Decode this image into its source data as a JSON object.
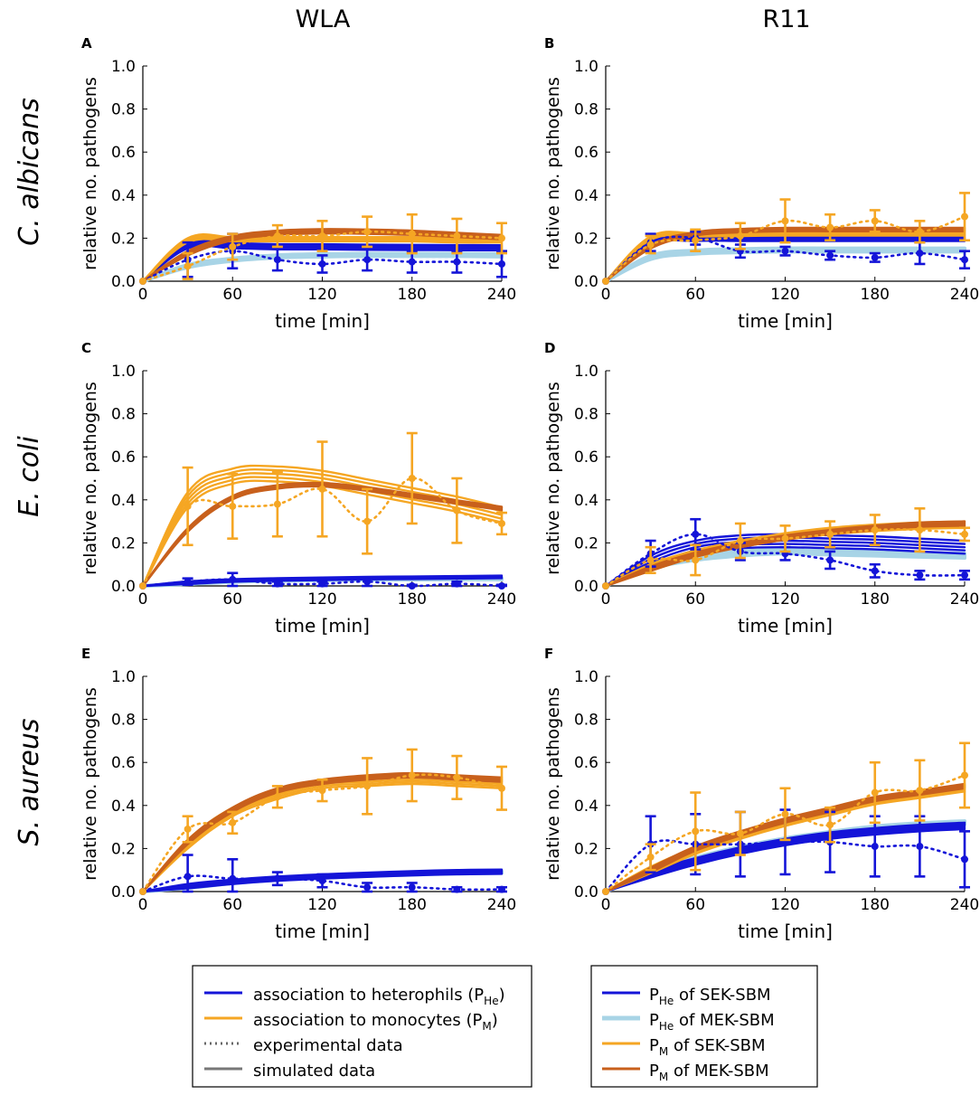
{
  "columns": [
    {
      "title": "WLA"
    },
    {
      "title": "R11"
    }
  ],
  "rows": [
    {
      "label": "C. albicans"
    },
    {
      "label": "E. coli"
    },
    {
      "label": "S. aureus"
    }
  ],
  "axis_text": {
    "xlabel": "time [min]",
    "ylabel": "relative no. pathogens",
    "xticks": [
      "0",
      "60",
      "120",
      "180",
      "240"
    ],
    "yticks": [
      "0.0",
      "0.2",
      "0.4",
      "0.6",
      "0.8",
      "1.0"
    ]
  },
  "colors": {
    "heterophils_sek": "#1414d8",
    "heterophils_mek": "#a8d4e6",
    "monocytes_sek": "#f5a623",
    "monocytes_mek": "#c8601c",
    "axis": "#000000"
  },
  "legend_left": {
    "items": [
      {
        "label": "association to heterophils (P",
        "sub": "He",
        "tail": ")",
        "style": "solid",
        "color": "#1414d8"
      },
      {
        "label": "association to monocytes (P",
        "sub": "M",
        "tail": ")",
        "style": "solid",
        "color": "#f5a623"
      },
      {
        "label": "experimental data",
        "sub": "",
        "tail": "",
        "style": "dotted",
        "color": "#666666"
      },
      {
        "label": "simulated data",
        "sub": "",
        "tail": "",
        "style": "solid",
        "color": "#777777"
      }
    ]
  },
  "legend_right": {
    "items": [
      {
        "label": "P",
        "sub": "He",
        "tail": " of SEK-SBM",
        "style": "solid",
        "color": "#1414d8"
      },
      {
        "label": "P",
        "sub": "He",
        "tail": " of MEK-SBM",
        "style": "solid",
        "color": "#a8d4e6"
      },
      {
        "label": "P",
        "sub": "M",
        "tail": " of SEK-SBM",
        "style": "solid",
        "color": "#f5a623"
      },
      {
        "label": "P",
        "sub": "M",
        "tail": " of MEK-SBM",
        "style": "solid",
        "color": "#c8601c"
      }
    ]
  },
  "chart_data": [
    {
      "panel": "A",
      "type": "line",
      "column": "WLA",
      "row": "C. albicans",
      "xlabel": "time [min]",
      "ylabel": "relative no. pathogens",
      "xlim": [
        0,
        240
      ],
      "ylim": [
        0,
        1
      ],
      "x": [
        0,
        30,
        60,
        90,
        120,
        150,
        180,
        210,
        240
      ],
      "experimental": [
        {
          "name": "heterophils",
          "values": [
            0,
            0.1,
            0.14,
            0.1,
            0.08,
            0.1,
            0.09,
            0.09,
            0.08
          ],
          "err": [
            0,
            0.08,
            0.08,
            0.05,
            0.04,
            0.05,
            0.05,
            0.05,
            0.06
          ]
        },
        {
          "name": "monocytes",
          "values": [
            0,
            0.07,
            0.16,
            0.21,
            0.21,
            0.23,
            0.22,
            0.21,
            0.2
          ],
          "err": [
            0,
            0.06,
            0.06,
            0.05,
            0.07,
            0.07,
            0.09,
            0.08,
            0.07
          ]
        }
      ],
      "simulated": [
        {
          "name": "PHe of SEK-SBM",
          "values": [
            0,
            0.165,
            0.165,
            0.16,
            0.16,
            0.158,
            0.157,
            0.156,
            0.155
          ],
          "band": 0.012
        },
        {
          "name": "PHe of MEK-SBM",
          "values": [
            0,
            0.07,
            0.1,
            0.115,
            0.12,
            0.122,
            0.122,
            0.122,
            0.12
          ],
          "band": 0.006
        },
        {
          "name": "PM of SEK-SBM",
          "values": [
            0,
            0.19,
            0.195,
            0.195,
            0.195,
            0.195,
            0.195,
            0.19,
            0.19
          ],
          "band": 0.01
        },
        {
          "name": "PM of MEK-SBM",
          "values": [
            0,
            0.13,
            0.2,
            0.225,
            0.232,
            0.23,
            0.225,
            0.215,
            0.205
          ],
          "band": 0.01
        }
      ]
    },
    {
      "panel": "B",
      "type": "line",
      "column": "R11",
      "row": "C. albicans",
      "xlabel": "time [min]",
      "ylabel": "relative no. pathogens",
      "xlim": [
        0,
        240
      ],
      "ylim": [
        0,
        1
      ],
      "x": [
        0,
        30,
        60,
        90,
        120,
        150,
        180,
        210,
        240
      ],
      "experimental": [
        {
          "name": "heterophils",
          "values": [
            0,
            0.18,
            0.2,
            0.14,
            0.14,
            0.12,
            0.11,
            0.13,
            0.1
          ],
          "err": [
            0,
            0.04,
            0.03,
            0.03,
            0.02,
            0.02,
            0.02,
            0.05,
            0.04
          ]
        },
        {
          "name": "monocytes",
          "values": [
            0,
            0.17,
            0.19,
            0.21,
            0.28,
            0.25,
            0.28,
            0.23,
            0.3
          ],
          "err": [
            0,
            0.04,
            0.05,
            0.06,
            0.1,
            0.06,
            0.05,
            0.05,
            0.11
          ]
        }
      ],
      "simulated": [
        {
          "name": "PHe of SEK-SBM",
          "values": [
            0,
            0.18,
            0.195,
            0.195,
            0.195,
            0.195,
            0.195,
            0.195,
            0.195
          ],
          "band": 0.008
        },
        {
          "name": "PHe of MEK-SBM",
          "values": [
            0,
            0.11,
            0.135,
            0.142,
            0.145,
            0.145,
            0.145,
            0.145,
            0.145
          ],
          "band": 0.008
        },
        {
          "name": "PM of SEK-SBM",
          "values": [
            0,
            0.2,
            0.215,
            0.218,
            0.22,
            0.22,
            0.22,
            0.22,
            0.22
          ],
          "band": 0.008
        },
        {
          "name": "PM of MEK-SBM",
          "values": [
            0,
            0.16,
            0.22,
            0.235,
            0.24,
            0.24,
            0.24,
            0.24,
            0.24
          ],
          "band": 0.008
        }
      ]
    },
    {
      "panel": "C",
      "type": "line",
      "column": "WLA",
      "row": "E. coli",
      "xlabel": "time [min]",
      "ylabel": "relative no. pathogens",
      "xlim": [
        0,
        240
      ],
      "ylim": [
        0,
        1
      ],
      "x": [
        0,
        30,
        60,
        90,
        120,
        150,
        180,
        210,
        240
      ],
      "experimental": [
        {
          "name": "heterophils",
          "values": [
            0,
            0.02,
            0.03,
            0.01,
            0.01,
            0.02,
            0.0,
            0.01,
            0.0
          ],
          "err": [
            0,
            0.015,
            0.03,
            0.01,
            0.01,
            0.02,
            0.005,
            0.01,
            0.005
          ]
        },
        {
          "name": "monocytes",
          "values": [
            0,
            0.37,
            0.37,
            0.38,
            0.45,
            0.3,
            0.5,
            0.35,
            0.29
          ],
          "err": [
            0,
            0.18,
            0.15,
            0.15,
            0.22,
            0.15,
            0.21,
            0.15,
            0.05
          ]
        }
      ],
      "simulated": [
        {
          "name": "PHe of SEK-SBM",
          "values": [
            0,
            0.015,
            0.025,
            0.03,
            0.033,
            0.036,
            0.038,
            0.04,
            0.042
          ],
          "band": 0.006
        },
        {
          "name": "PHe of MEK-SBM",
          "values": [
            0,
            0.01,
            0.02,
            0.025,
            0.028,
            0.03,
            0.031,
            0.032,
            0.032
          ],
          "band": 0.002
        },
        {
          "name": "PM of SEK-SBM",
          "values": [
            0,
            0.4,
            0.51,
            0.52,
            0.5,
            0.46,
            0.42,
            0.38,
            0.33
          ],
          "band": 0.035
        },
        {
          "name": "PM of MEK-SBM",
          "values": [
            0,
            0.26,
            0.41,
            0.46,
            0.47,
            0.45,
            0.42,
            0.39,
            0.36
          ],
          "band": 0.008
        }
      ]
    },
    {
      "panel": "D",
      "type": "line",
      "column": "R11",
      "row": "E. coli",
      "xlabel": "time [min]",
      "ylabel": "relative no. pathogens",
      "xlim": [
        0,
        240
      ],
      "ylim": [
        0,
        1
      ],
      "x": [
        0,
        30,
        60,
        90,
        120,
        150,
        180,
        210,
        240
      ],
      "experimental": [
        {
          "name": "heterophils",
          "values": [
            0,
            0.15,
            0.24,
            0.16,
            0.15,
            0.12,
            0.07,
            0.05,
            0.05
          ],
          "err": [
            0,
            0.06,
            0.07,
            0.04,
            0.03,
            0.04,
            0.03,
            0.02,
            0.02
          ]
        },
        {
          "name": "monocytes",
          "values": [
            0,
            0.12,
            0.12,
            0.21,
            0.22,
            0.24,
            0.26,
            0.26,
            0.24
          ],
          "err": [
            0,
            0.06,
            0.07,
            0.08,
            0.06,
            0.06,
            0.07,
            0.1,
            0.03
          ]
        }
      ],
      "simulated": [
        {
          "name": "PHe of SEK-SBM",
          "values": [
            0,
            0.11,
            0.18,
            0.205,
            0.21,
            0.205,
            0.2,
            0.19,
            0.18
          ],
          "band": 0.03
        },
        {
          "name": "PHe of MEK-SBM",
          "values": [
            0,
            0.09,
            0.13,
            0.15,
            0.16,
            0.155,
            0.15,
            0.145,
            0.14
          ],
          "band": 0.01
        },
        {
          "name": "PM of SEK-SBM",
          "values": [
            0,
            0.085,
            0.15,
            0.195,
            0.23,
            0.255,
            0.27,
            0.28,
            0.285
          ],
          "band": 0.015
        },
        {
          "name": "PM of MEK-SBM",
          "values": [
            0,
            0.08,
            0.145,
            0.19,
            0.225,
            0.25,
            0.27,
            0.285,
            0.29
          ],
          "band": 0.01
        }
      ]
    },
    {
      "panel": "E",
      "type": "line",
      "column": "WLA",
      "row": "S. aureus",
      "xlabel": "time [min]",
      "ylabel": "relative no. pathogens",
      "xlim": [
        0,
        240
      ],
      "ylim": [
        0,
        1
      ],
      "x": [
        0,
        30,
        60,
        90,
        120,
        150,
        180,
        210,
        240
      ],
      "experimental": [
        {
          "name": "heterophils",
          "values": [
            0,
            0.07,
            0.06,
            0.06,
            0.05,
            0.02,
            0.02,
            0.01,
            0.01
          ],
          "err": [
            0,
            0.1,
            0.09,
            0.03,
            0.03,
            0.02,
            0.02,
            0.01,
            0.01
          ]
        },
        {
          "name": "monocytes",
          "values": [
            0,
            0.29,
            0.32,
            0.44,
            0.47,
            0.49,
            0.54,
            0.53,
            0.48
          ],
          "err": [
            0,
            0.06,
            0.05,
            0.05,
            0.05,
            0.13,
            0.12,
            0.1,
            0.1
          ]
        }
      ],
      "simulated": [
        {
          "name": "PHe of SEK-SBM",
          "values": [
            0,
            0.025,
            0.045,
            0.06,
            0.07,
            0.078,
            0.085,
            0.09,
            0.092
          ],
          "band": 0.01
        },
        {
          "name": "PHe of MEK-SBM",
          "values": [
            0,
            0.02,
            0.042,
            0.058,
            0.068,
            0.076,
            0.082,
            0.087,
            0.09
          ],
          "band": 0.004
        },
        {
          "name": "PM of SEK-SBM",
          "values": [
            0,
            0.22,
            0.37,
            0.45,
            0.5,
            0.51,
            0.52,
            0.51,
            0.5
          ],
          "band": 0.02
        },
        {
          "name": "PM of MEK-SBM",
          "values": [
            0,
            0.23,
            0.38,
            0.47,
            0.51,
            0.53,
            0.54,
            0.53,
            0.52
          ],
          "band": 0.01
        }
      ]
    },
    {
      "panel": "F",
      "type": "line",
      "column": "R11",
      "row": "S. aureus",
      "xlabel": "time [min]",
      "ylabel": "relative no. pathogens",
      "xlim": [
        0,
        240
      ],
      "ylim": [
        0,
        1
      ],
      "x": [
        0,
        30,
        60,
        90,
        120,
        150,
        180,
        210,
        240
      ],
      "experimental": [
        {
          "name": "heterophils",
          "values": [
            0,
            0.22,
            0.22,
            0.22,
            0.23,
            0.23,
            0.21,
            0.21,
            0.15
          ],
          "err": [
            0,
            0.13,
            0.14,
            0.15,
            0.15,
            0.14,
            0.14,
            0.14,
            0.13
          ]
        },
        {
          "name": "monocytes",
          "values": [
            0,
            0.16,
            0.28,
            0.27,
            0.36,
            0.31,
            0.46,
            0.47,
            0.54
          ],
          "err": [
            0,
            0.06,
            0.18,
            0.1,
            0.12,
            0.08,
            0.14,
            0.14,
            0.15
          ]
        }
      ],
      "simulated": [
        {
          "name": "PHe of SEK-SBM",
          "values": [
            0,
            0.08,
            0.14,
            0.19,
            0.23,
            0.26,
            0.28,
            0.295,
            0.305
          ],
          "band": 0.015
        },
        {
          "name": "PHe of MEK-SBM",
          "values": [
            0,
            0.085,
            0.15,
            0.2,
            0.24,
            0.27,
            0.295,
            0.31,
            0.32
          ],
          "band": 0.008
        },
        {
          "name": "PM of SEK-SBM",
          "values": [
            0,
            0.1,
            0.19,
            0.26,
            0.32,
            0.37,
            0.42,
            0.45,
            0.48
          ],
          "band": 0.015
        },
        {
          "name": "PM of MEK-SBM",
          "values": [
            0,
            0.1,
            0.2,
            0.27,
            0.33,
            0.38,
            0.43,
            0.46,
            0.49
          ],
          "band": 0.01
        }
      ]
    }
  ]
}
